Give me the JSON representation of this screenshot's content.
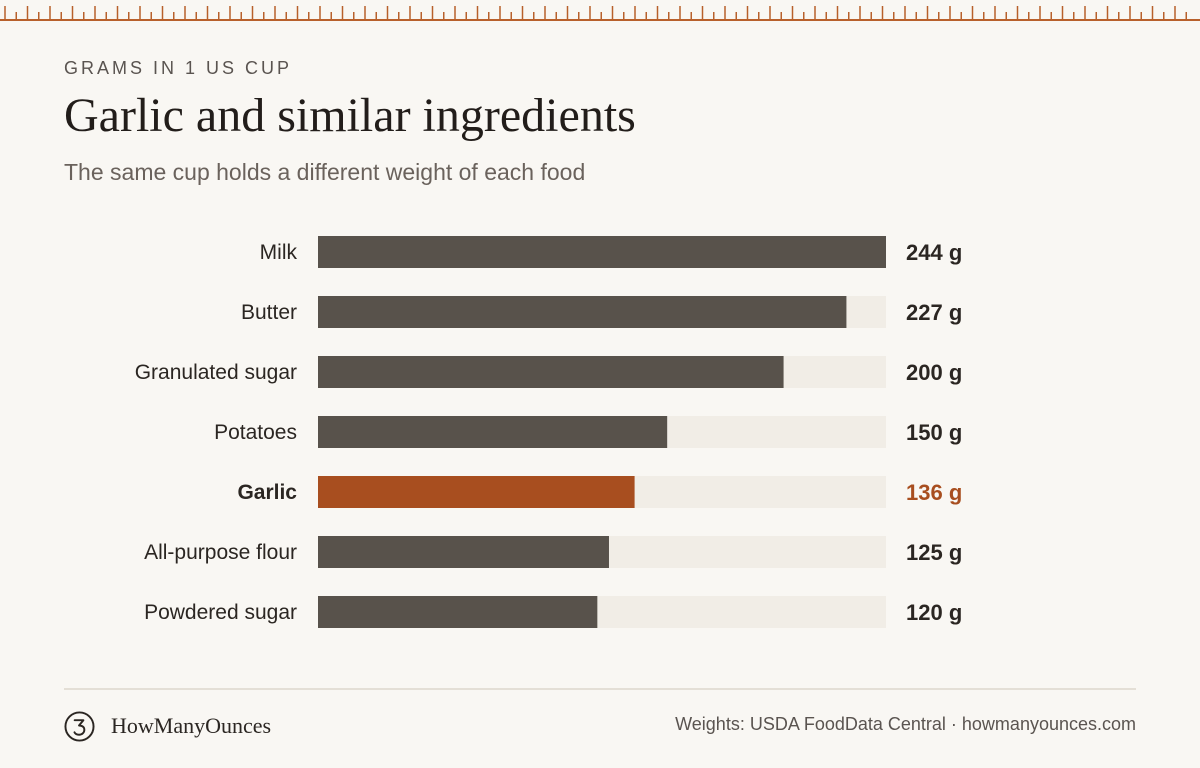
{
  "header": {
    "eyebrow": "GRAMS IN 1 US CUP",
    "title": "Garlic and similar ingredients",
    "subtitle": "The same cup holds a different weight of each food"
  },
  "chart_data": {
    "type": "bar",
    "orientation": "horizontal",
    "categories": [
      "Milk",
      "Butter",
      "Granulated sugar",
      "Potatoes",
      "Garlic",
      "All-purpose flour",
      "Powdered sugar"
    ],
    "values": [
      244,
      227,
      200,
      150,
      136,
      125,
      120
    ],
    "value_labels": [
      "244 g",
      "227 g",
      "200 g",
      "150 g",
      "136 g",
      "125 g",
      "120 g"
    ],
    "unit": "g",
    "xlim": [
      0,
      244
    ],
    "highlight_category": "Garlic",
    "grid": false,
    "legend": "none"
  },
  "colors": {
    "bar": "#58524b",
    "highlight": "#a84e1f",
    "track": "#f1ede6",
    "label": "#2b2622",
    "accent_ruler": "#b8602b"
  },
  "footer": {
    "brand_icon": "stylized-3-logo-icon",
    "brand_name": "HowManyOunces",
    "source": "Weights: USDA FoodData Central · howmanyounces.com"
  }
}
